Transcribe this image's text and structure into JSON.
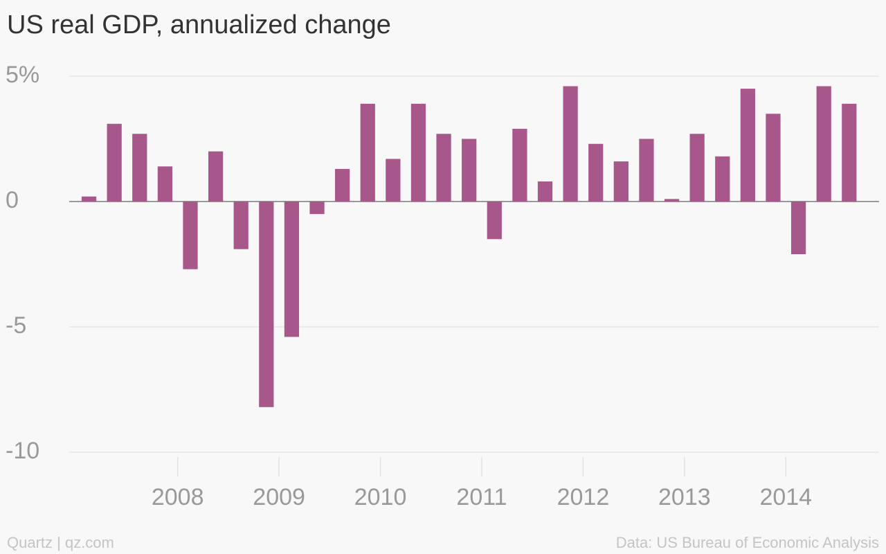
{
  "chart_data": {
    "type": "bar",
    "title": "US real GDP, annualized change",
    "source": "Data: US Bureau of Economic Analysis",
    "credit": "Quartz | qz.com",
    "color": "#a8578a",
    "x": [
      2007,
      2007.25,
      2007.5,
      2007.75,
      2008,
      2008.25,
      2008.5,
      2008.75,
      2009,
      2009.25,
      2009.5,
      2009.75,
      2010,
      2010.25,
      2010.5,
      2010.75,
      2011,
      2011.25,
      2011.5,
      2011.75,
      2012,
      2012.25,
      2012.5,
      2012.75,
      2013,
      2013.25,
      2013.5,
      2013.75,
      2014,
      2014.25,
      2014.5
    ],
    "values": [
      0.2,
      3.1,
      2.7,
      1.4,
      -2.7,
      2.0,
      -1.9,
      -8.2,
      -5.4,
      -0.5,
      1.3,
      3.9,
      1.7,
      3.9,
      2.7,
      2.5,
      -1.5,
      2.9,
      0.8,
      4.6,
      2.3,
      1.6,
      2.5,
      0.1,
      2.7,
      1.8,
      4.5,
      3.5,
      -2.1,
      4.6,
      3.9
    ],
    "xlim": [
      2006.93,
      2014.92
    ],
    "xticks": [
      2008,
      2009,
      2010,
      2011,
      2012,
      2013,
      2014
    ],
    "ylim": [
      -10,
      5
    ],
    "yticks": [
      {
        "value": 5,
        "label": "5%"
      },
      0,
      -5,
      -10
    ],
    "grid": true
  }
}
